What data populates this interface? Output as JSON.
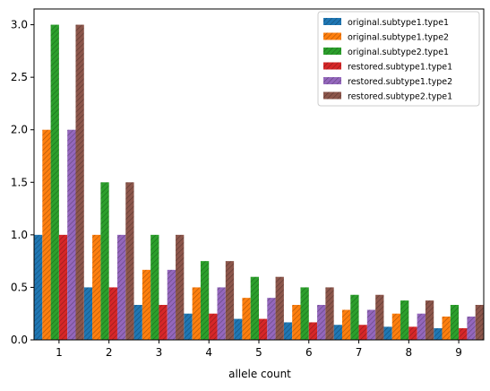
{
  "chart_data": {
    "type": "bar",
    "title": "",
    "xlabel": "allele count",
    "ylabel": "",
    "ylim": [
      0,
      3.15
    ],
    "yticks": [
      "0.0",
      "0.5",
      "1.0",
      "1.5",
      "2.0",
      "2.5",
      "3.0"
    ],
    "categories": [
      "1",
      "2",
      "3",
      "4",
      "5",
      "6",
      "7",
      "8",
      "9"
    ],
    "grid": false,
    "legend_position": "top-right",
    "bar_style": "hatched",
    "series": [
      {
        "name": "original.subtype1.type1",
        "color": "#1f77b4",
        "values": [
          1.0,
          0.5,
          0.333,
          0.25,
          0.2,
          0.167,
          0.143,
          0.125,
          0.111
        ]
      },
      {
        "name": "original.subtype1.type2",
        "color": "#ff7f0e",
        "values": [
          2.0,
          1.0,
          0.667,
          0.5,
          0.4,
          0.333,
          0.286,
          0.25,
          0.222
        ]
      },
      {
        "name": "original.subtype2.type1",
        "color": "#2ca02c",
        "values": [
          3.0,
          1.5,
          1.0,
          0.75,
          0.6,
          0.5,
          0.429,
          0.375,
          0.333
        ]
      },
      {
        "name": "restored.subtype1.type1",
        "color": "#d62728",
        "values": [
          1.0,
          0.5,
          0.333,
          0.25,
          0.2,
          0.167,
          0.143,
          0.125,
          0.111
        ]
      },
      {
        "name": "restored.subtype1.type2",
        "color": "#9467bd",
        "values": [
          2.0,
          1.0,
          0.667,
          0.5,
          0.4,
          0.333,
          0.286,
          0.25,
          0.222
        ]
      },
      {
        "name": "restored.subtype2.type1",
        "color": "#8c564b",
        "values": [
          3.0,
          1.5,
          1.0,
          0.75,
          0.6,
          0.5,
          0.429,
          0.375,
          0.333
        ]
      }
    ]
  }
}
